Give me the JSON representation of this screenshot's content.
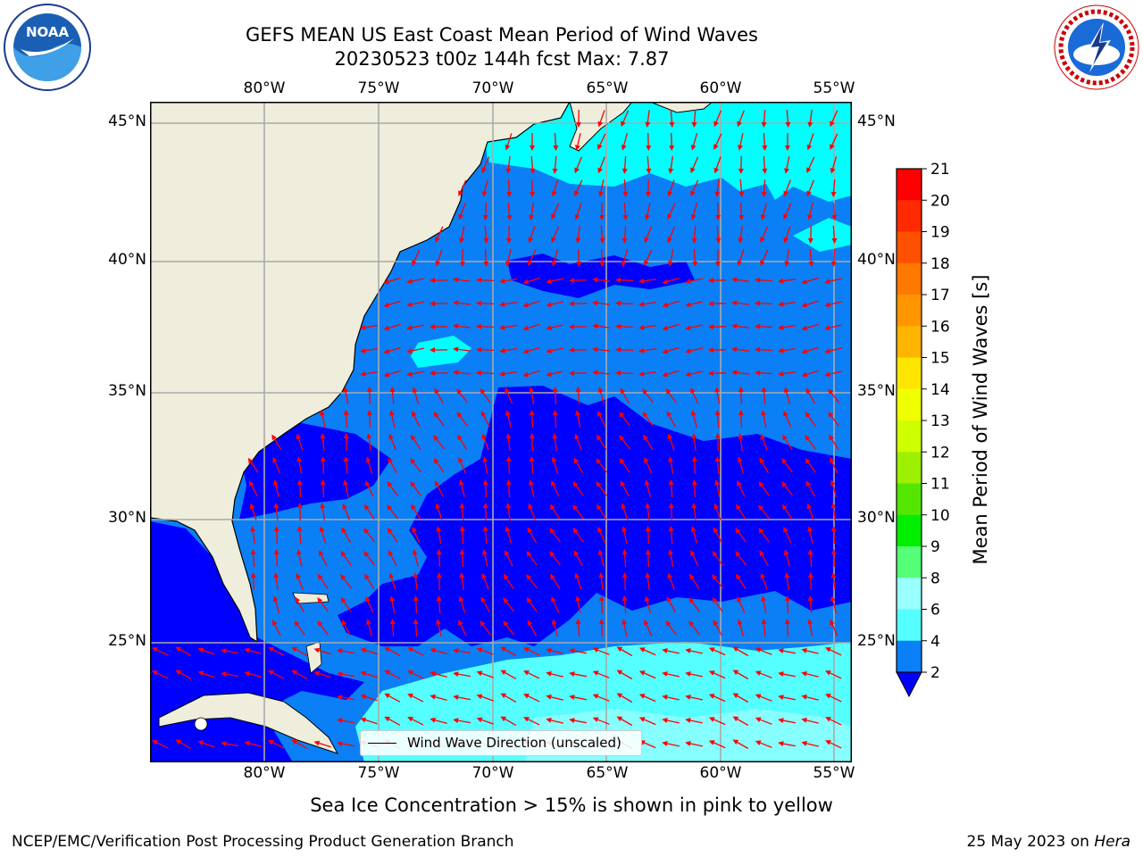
{
  "title": {
    "line1": "GEFS MEAN US East Coast Mean Period of Wind Waves",
    "line2": "20230523 t00z 144h fcst   Max: 7.87"
  },
  "map": {
    "lon_labels": [
      "80°W",
      "75°W",
      "70°W",
      "65°W",
      "60°W",
      "55°W"
    ],
    "lat_labels": [
      "45°N",
      "40°N",
      "35°N",
      "30°N",
      "25°N"
    ],
    "extent": {
      "lon": [
        -85,
        -54.5
      ],
      "lat": [
        20.5,
        46
      ]
    },
    "colors": {
      "land": "#efeddc",
      "deep": "#0000ff",
      "mid": "#0b7ff6",
      "light": "#00ffff",
      "pale": "#55ffff",
      "arrow": "#ff0000",
      "grid": "#aaaaaa"
    },
    "legend_text": "Wind Wave Direction (unscaled)"
  },
  "colorbar": {
    "label": "Mean Period of Wind Waves [s]",
    "ticks": [
      "2",
      "4",
      "6",
      "8",
      "9",
      "10",
      "11",
      "12",
      "13",
      "14",
      "15",
      "16",
      "17",
      "18",
      "19",
      "20",
      "21"
    ],
    "colors": [
      "#0b7ff6",
      "#00ffff",
      "#3dffff",
      "#66ffff",
      "#99ffff",
      "#55ff88",
      "#00ff00",
      "#55ee00",
      "#99ee00",
      "#ccff00",
      "#ddff00",
      "#ffff00",
      "#ffd000",
      "#ffb000",
      "#ff8800",
      "#ff5500",
      "#ff2200",
      "#ff0000"
    ]
  },
  "note": "Sea Ice Concentration > 15% is shown in pink to yellow",
  "footer": {
    "left": "NCEP/EMC/Verification Post Processing Product Generation Branch",
    "date": "25 May 2023 on ",
    "machine": "Hera"
  },
  "logos": {
    "noaa_text": "NOAA",
    "nws_text": "NATIONAL WEATHER SERVICE"
  }
}
